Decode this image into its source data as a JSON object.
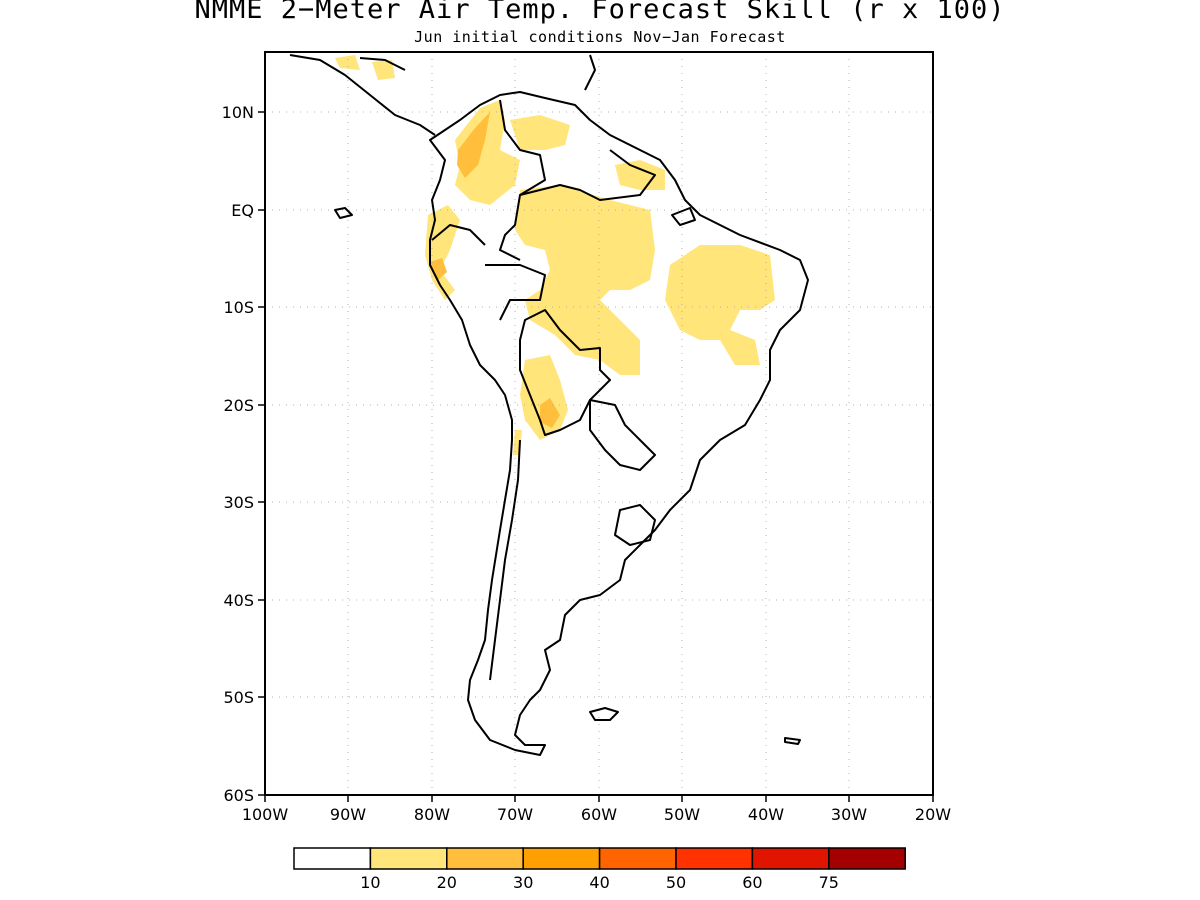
{
  "map": {
    "title": "NMME 2−Meter Air Temp. Forecast Skill (r x 100)",
    "subtitle": "Jun initial conditions  Nov−Jan Forecast",
    "lat_labels": [
      "10N",
      "EQ",
      "10S",
      "20S",
      "30S",
      "40S",
      "50S",
      "60S"
    ],
    "lon_labels": [
      "100W",
      "90W",
      "80W",
      "70W",
      "60W",
      "50W",
      "40W",
      "30W",
      "20W"
    ],
    "extent": {
      "lon": [
        -100,
        -20
      ],
      "lat": [
        -60,
        15
      ]
    }
  },
  "legend": {
    "labels": [
      "10",
      "20",
      "30",
      "40",
      "50",
      "60",
      "75"
    ],
    "colors": [
      "#ffffff",
      "#ffe57a",
      "#ffbf3c",
      "#ffa000",
      "#ff6400",
      "#ff3200",
      "#e11400",
      "#a50000"
    ]
  }
}
